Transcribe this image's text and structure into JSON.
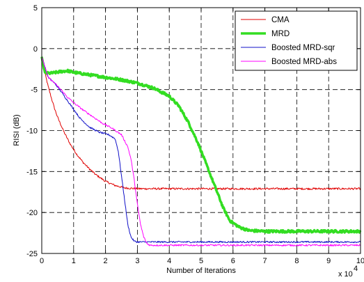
{
  "chart_data": {
    "type": "line",
    "title": "",
    "xlabel": "Number of Iterations",
    "ylabel": "RISI (dB)",
    "x_multiplier_label": "x 10",
    "x_multiplier_exponent": "4",
    "xlim": [
      0,
      10
    ],
    "ylim": [
      -25,
      5
    ],
    "xticks": [
      0,
      1,
      2,
      3,
      4,
      5,
      6,
      7,
      8,
      9,
      10
    ],
    "yticks": [
      5,
      0,
      -5,
      -10,
      -15,
      -20,
      -25
    ],
    "grid": true,
    "legend_position": "top-right",
    "series": [
      {
        "name": "CMA",
        "color": "#e00000",
        "width": 1,
        "noise": 0.12,
        "x": [
          0,
          0.1,
          0.2,
          0.3,
          0.4,
          0.5,
          0.7,
          0.9,
          1.1,
          1.3,
          1.5,
          1.7,
          2.0,
          2.3,
          2.6,
          3.0,
          3.5,
          4.0,
          5.0,
          6.0,
          7.0,
          8.0,
          9.0,
          10.0
        ],
        "y": [
          -1,
          -3.0,
          -4.6,
          -6.0,
          -7.3,
          -8.4,
          -10.2,
          -11.7,
          -12.9,
          -13.9,
          -14.7,
          -15.4,
          -16.2,
          -16.7,
          -17.0,
          -17.1,
          -17.1,
          -17.1,
          -17.1,
          -17.1,
          -17.1,
          -17.1,
          -17.1,
          -17.1
        ]
      },
      {
        "name": "MRD",
        "color": "#33dd22",
        "width": 3.5,
        "noise": 0.15,
        "x": [
          0,
          0.1,
          0.3,
          0.6,
          0.8,
          1.0,
          1.5,
          2.0,
          2.5,
          3.0,
          3.5,
          4.0,
          4.3,
          4.6,
          4.9,
          5.2,
          5.5,
          5.7,
          5.9,
          6.2,
          6.5,
          7.0,
          8.0,
          9.0,
          10.0
        ],
        "y": [
          -1,
          -3.0,
          -3.0,
          -2.8,
          -2.7,
          -2.9,
          -3.2,
          -3.5,
          -3.8,
          -4.2,
          -4.8,
          -5.8,
          -7.0,
          -9.0,
          -11.5,
          -14.5,
          -17.5,
          -19.5,
          -21.0,
          -21.8,
          -22.2,
          -22.3,
          -22.3,
          -22.3,
          -22.3
        ]
      },
      {
        "name": "Boosted MRD-sqr",
        "color": "#1010c8",
        "width": 1,
        "noise": 0.1,
        "x": [
          0,
          0.2,
          0.4,
          0.6,
          0.8,
          1.0,
          1.2,
          1.5,
          1.8,
          2.1,
          2.3,
          2.4,
          2.5,
          2.6,
          2.7,
          2.8,
          2.9,
          3.0,
          3.2,
          3.5,
          4.0,
          5.0,
          6.0,
          7.0,
          8.0,
          9.0,
          10.0
        ],
        "y": [
          -1,
          -3.5,
          -4.2,
          -5.2,
          -6.3,
          -7.4,
          -8.5,
          -9.6,
          -10.2,
          -10.5,
          -11.0,
          -12.5,
          -15.5,
          -18.5,
          -21.5,
          -23.0,
          -23.5,
          -23.6,
          -23.6,
          -23.6,
          -23.6,
          -23.6,
          -23.6,
          -23.6,
          -23.6,
          -23.6,
          -23.6
        ]
      },
      {
        "name": "Boosted MRD-abs",
        "color": "#ff00ff",
        "width": 1,
        "noise": 0.1,
        "x": [
          0,
          0.2,
          0.4,
          0.6,
          0.8,
          1.0,
          1.3,
          1.6,
          1.9,
          2.2,
          2.5,
          2.7,
          2.8,
          2.9,
          3.0,
          3.1,
          3.2,
          3.3,
          3.4,
          3.6,
          4.0,
          5.0,
          6.0,
          7.0,
          8.0,
          9.0,
          10.0
        ],
        "y": [
          -1,
          -3.5,
          -4.2,
          -5.0,
          -5.9,
          -6.6,
          -7.5,
          -8.3,
          -9.1,
          -9.7,
          -10.5,
          -12.0,
          -13.5,
          -16.0,
          -19.0,
          -21.5,
          -23.0,
          -23.8,
          -24.0,
          -24.0,
          -24.0,
          -24.0,
          -24.0,
          -24.0,
          -24.0,
          -24.0,
          -24.0
        ]
      }
    ]
  }
}
